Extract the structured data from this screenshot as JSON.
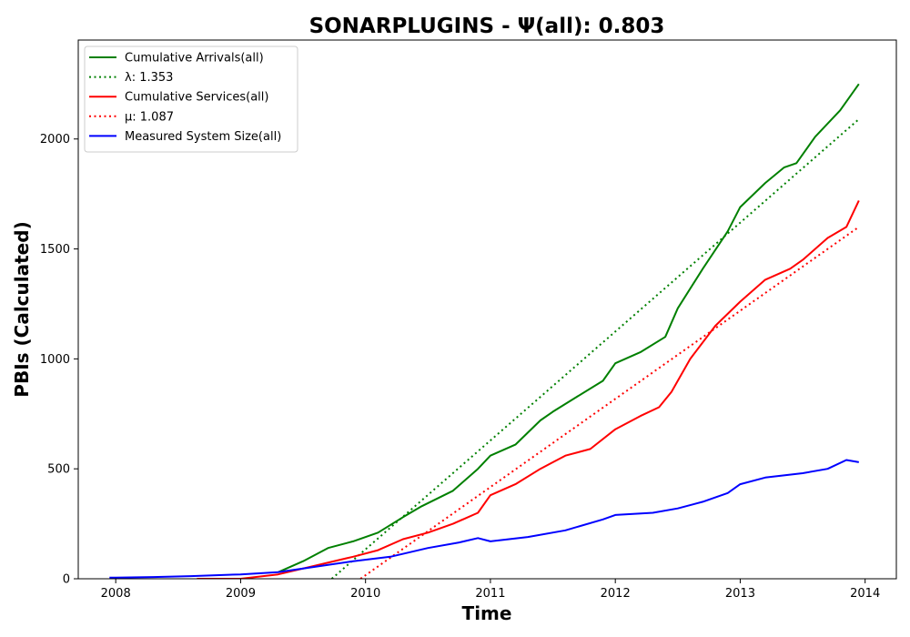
{
  "chart_data": {
    "type": "line",
    "title": "SONARPLUGINS -  Ψ(all): 0.803",
    "xlabel": "Time",
    "ylabel": "PBIs (Calculated)",
    "xlim": [
      2007.7,
      2014.25
    ],
    "ylim": [
      0,
      2450
    ],
    "x_ticks": [
      2008,
      2009,
      2010,
      2011,
      2012,
      2013,
      2014
    ],
    "x_tick_labels": [
      "2008",
      "2009",
      "2010",
      "2011",
      "2012",
      "2013",
      "2014"
    ],
    "y_ticks": [
      0,
      500,
      1000,
      1500,
      2000
    ],
    "y_tick_labels": [
      "0",
      "500",
      "1000",
      "1500",
      "2000"
    ],
    "grid": false,
    "legend_position": "top-left",
    "series": [
      {
        "name": "Cumulative Arrivals(all)",
        "color": "#008000",
        "style": "solid",
        "x": [
          2009.3,
          2009.5,
          2009.7,
          2009.9,
          2010.1,
          2010.3,
          2010.45,
          2010.7,
          2010.9,
          2011.0,
          2011.2,
          2011.4,
          2011.5,
          2011.7,
          2011.9,
          2012.0,
          2012.2,
          2012.4,
          2012.5,
          2012.7,
          2012.9,
          2013.0,
          2013.2,
          2013.35,
          2013.45,
          2013.6,
          2013.8,
          2013.95
        ],
        "y": [
          30,
          80,
          140,
          170,
          210,
          280,
          330,
          400,
          500,
          560,
          610,
          720,
          760,
          830,
          900,
          980,
          1030,
          1100,
          1230,
          1410,
          1580,
          1690,
          1800,
          1870,
          1890,
          2010,
          2130,
          2250
        ]
      },
      {
        "name": "λ: 1.353",
        "color": "#008000",
        "style": "dotted",
        "x": [
          2009.73,
          2013.95
        ],
        "y": [
          0,
          2090
        ]
      },
      {
        "name": "Cumulative Services(all)",
        "color": "#ff0000",
        "style": "solid",
        "x": [
          2008.65,
          2009.0,
          2009.3,
          2009.6,
          2009.9,
          2010.1,
          2010.3,
          2010.5,
          2010.7,
          2010.9,
          2011.0,
          2011.2,
          2011.4,
          2011.6,
          2011.8,
          2012.0,
          2012.2,
          2012.35,
          2012.45,
          2012.6,
          2012.8,
          2013.0,
          2013.2,
          2013.4,
          2013.5,
          2013.7,
          2013.85,
          2013.95
        ],
        "y": [
          0,
          0,
          20,
          60,
          100,
          130,
          180,
          210,
          250,
          300,
          380,
          430,
          500,
          560,
          590,
          680,
          740,
          780,
          850,
          1000,
          1150,
          1260,
          1360,
          1410,
          1450,
          1550,
          1600,
          1720
        ]
      },
      {
        "name": "μ: 1.087",
        "color": "#ff0000",
        "style": "dotted",
        "x": [
          2009.96,
          2013.95
        ],
        "y": [
          0,
          1600
        ]
      },
      {
        "name": "Measured System Size(all)",
        "color": "#0000ff",
        "style": "solid",
        "x": [
          2007.95,
          2008.3,
          2008.6,
          2009.0,
          2009.3,
          2009.6,
          2009.9,
          2010.2,
          2010.5,
          2010.75,
          2010.9,
          2011.0,
          2011.3,
          2011.6,
          2011.9,
          2012.0,
          2012.3,
          2012.5,
          2012.7,
          2012.9,
          2013.0,
          2013.2,
          2013.5,
          2013.7,
          2013.85,
          2013.95
        ],
        "y": [
          5,
          8,
          12,
          20,
          30,
          55,
          80,
          100,
          140,
          165,
          185,
          170,
          190,
          220,
          270,
          290,
          300,
          320,
          350,
          390,
          430,
          460,
          480,
          500,
          540,
          530
        ]
      }
    ]
  }
}
